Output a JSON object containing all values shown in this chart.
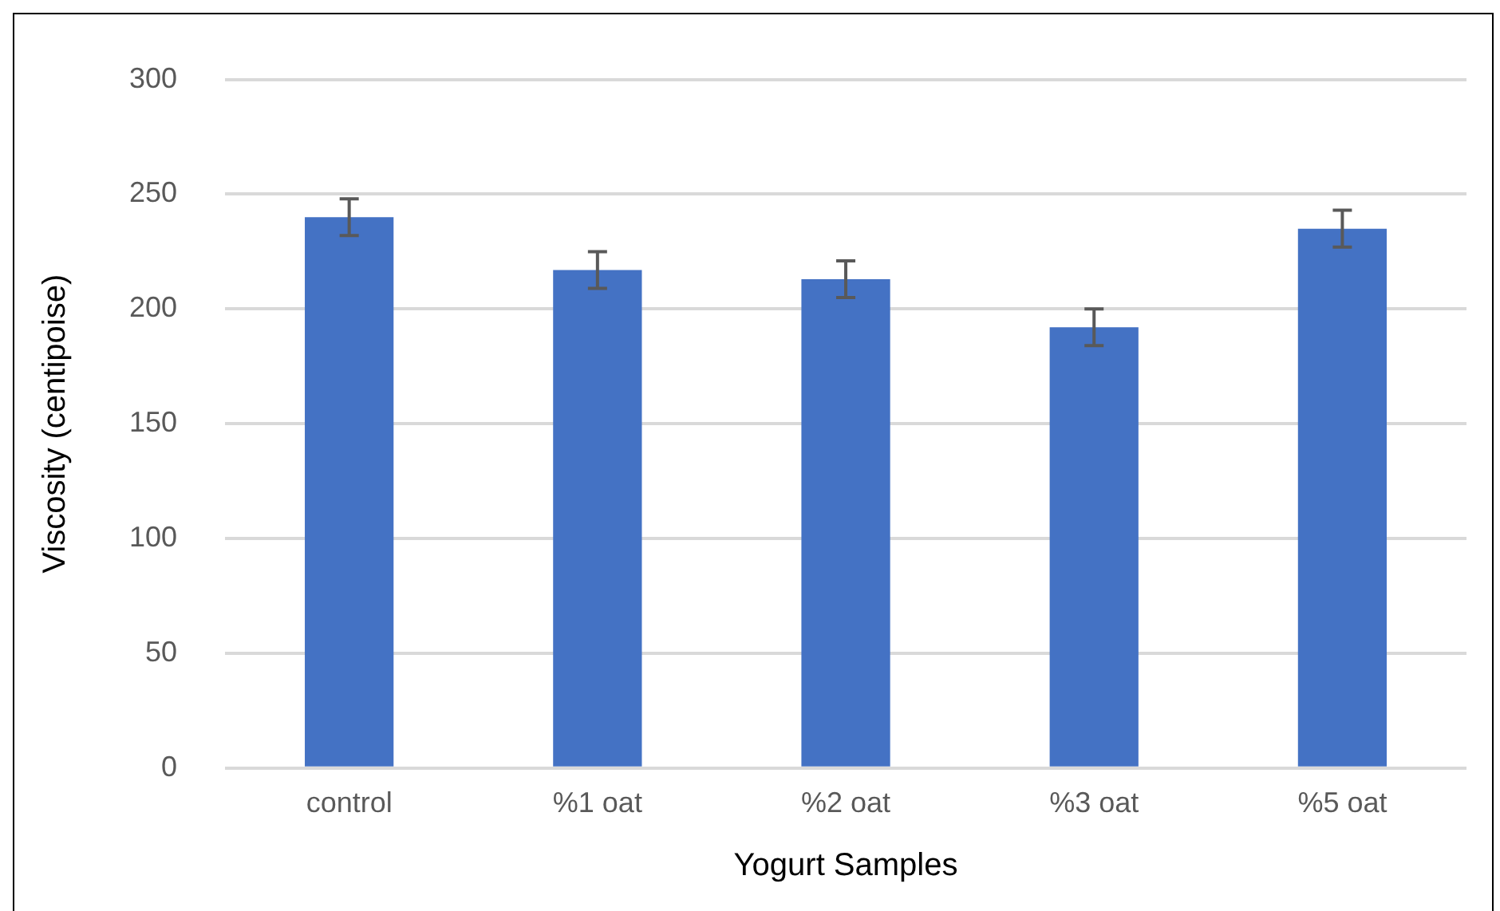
{
  "chart_data": {
    "type": "bar",
    "xlabel": "Yogurt Samples",
    "ylabel": "Viscosity (centipoise)",
    "categories": [
      "control",
      "%1 oat",
      "%2 oat",
      "%3 oat",
      "%5 oat"
    ],
    "values": [
      240,
      217,
      213,
      192,
      235
    ],
    "errors": [
      8,
      8,
      8,
      8,
      8
    ],
    "color": "#4472c4",
    "ylim": [
      0,
      300
    ],
    "yticks": [
      0,
      50,
      100,
      150,
      200,
      250,
      300
    ],
    "grid": "y",
    "legend": false
  }
}
